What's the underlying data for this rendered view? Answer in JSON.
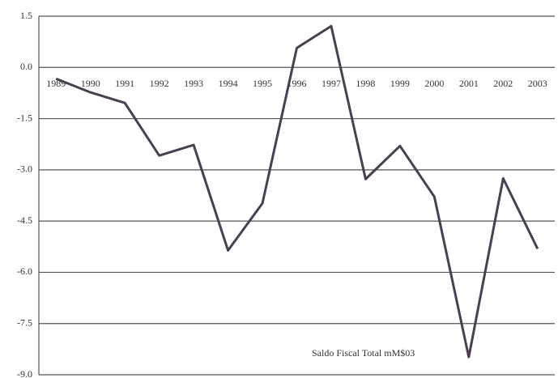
{
  "chart_data": {
    "type": "line",
    "categories": [
      "1989",
      "1990",
      "1991",
      "1992",
      "1993",
      "1994",
      "1995",
      "1996",
      "1997",
      "1998",
      "1999",
      "2000",
      "2001",
      "2002",
      "2003"
    ],
    "series": [
      {
        "name": "Saldo Fiscal Total mM$03",
        "color": "#4a3f50",
        "values": [
          -0.33,
          -0.73,
          -1.04,
          -2.58,
          -2.27,
          -5.36,
          -3.98,
          0.57,
          1.21,
          -3.27,
          -2.3,
          -3.79,
          -8.48,
          -3.25,
          -5.31
        ]
      }
    ],
    "ylim": [
      -9,
      1.5
    ],
    "yticks": [
      1.5,
      {
        "value": 0,
        "label": "0.0"
      },
      -1.5,
      {
        "value": -3,
        "label": "-3.0"
      },
      -4.5,
      {
        "value": -6,
        "label": "-6.0"
      },
      -7.5,
      {
        "value": -9,
        "label": "-9.0"
      }
    ],
    "grid": true
  }
}
